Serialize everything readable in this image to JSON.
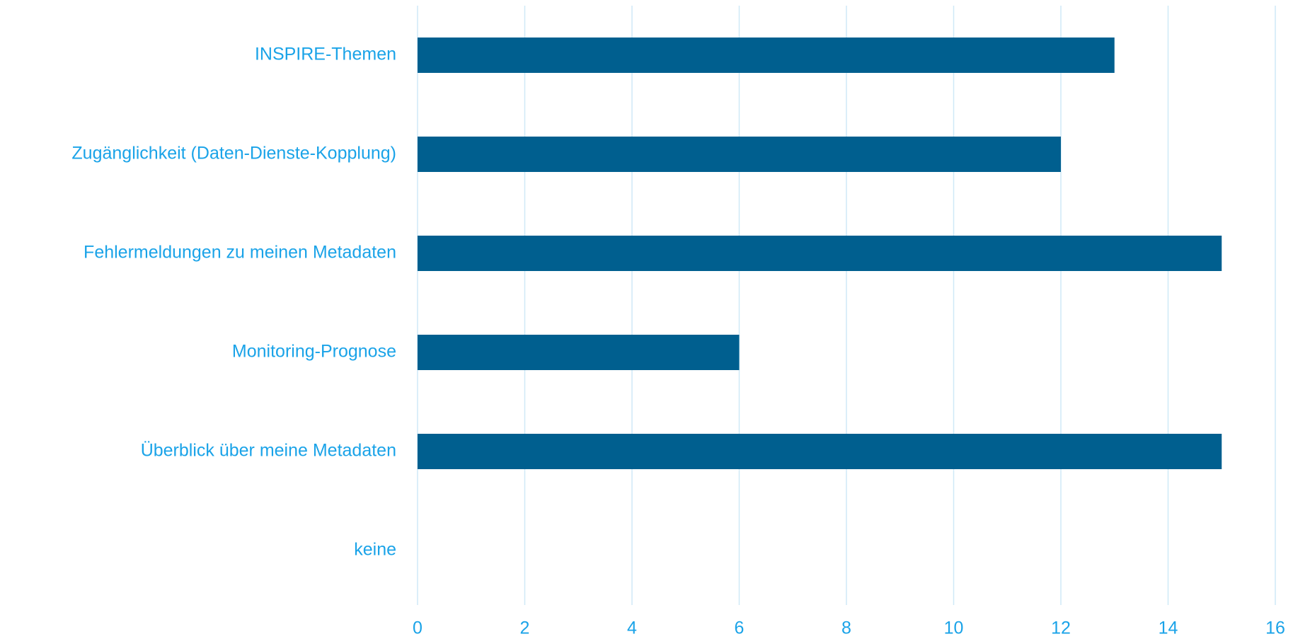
{
  "chart_data": {
    "type": "bar",
    "orientation": "horizontal",
    "title": "",
    "xlabel": "",
    "ylabel": "",
    "categories": [
      "INSPIRE-Themen",
      "Zugänglichkeit (Daten-Dienste-Kopplung)",
      "Fehlermeldungen zu meinen Metadaten",
      "Monitoring-Prognose",
      "Überblick über meine Metadaten",
      "keine"
    ],
    "values": [
      13,
      12,
      15,
      6,
      15,
      0
    ],
    "xlim": [
      0,
      16
    ],
    "x_ticks": [
      "0",
      "2",
      "4",
      "6",
      "8",
      "10",
      "12",
      "14",
      "16"
    ],
    "grid": "vertical",
    "legend": "none",
    "colors": {
      "bar": "#005f8f",
      "label": "#1aa3e8",
      "grid": "#cfe9f7"
    }
  }
}
